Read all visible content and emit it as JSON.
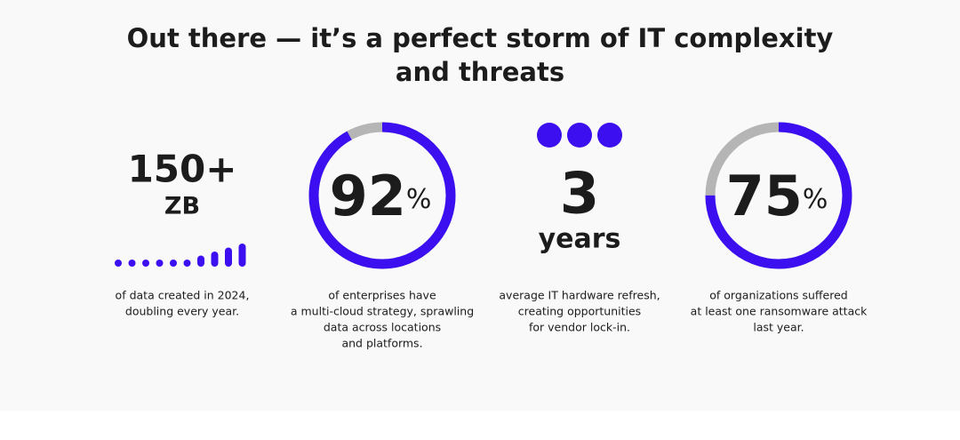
{
  "title_lines": [
    "Out there — it’s a perfect storm of IT complexity",
    "and threats"
  ],
  "stats": [
    {
      "value": "150+",
      "unit": "ZB",
      "caption_lines": [
        "of data created in 2024,",
        "doubling every year."
      ]
    },
    {
      "value": 92,
      "unit": "%",
      "caption_lines": [
        "of enterprises have",
        "a multi-cloud strategy, sprawling",
        "data across locations",
        "and platforms."
      ]
    },
    {
      "value": 3,
      "unit": "years",
      "caption_lines": [
        "average IT hardware refresh,",
        "creating opportunities",
        "for vendor lock-in."
      ]
    },
    {
      "value": 75,
      "unit": "%",
      "caption_lines": [
        "of organizations suffered",
        "at least one ransomware attack",
        "last year."
      ]
    }
  ]
}
